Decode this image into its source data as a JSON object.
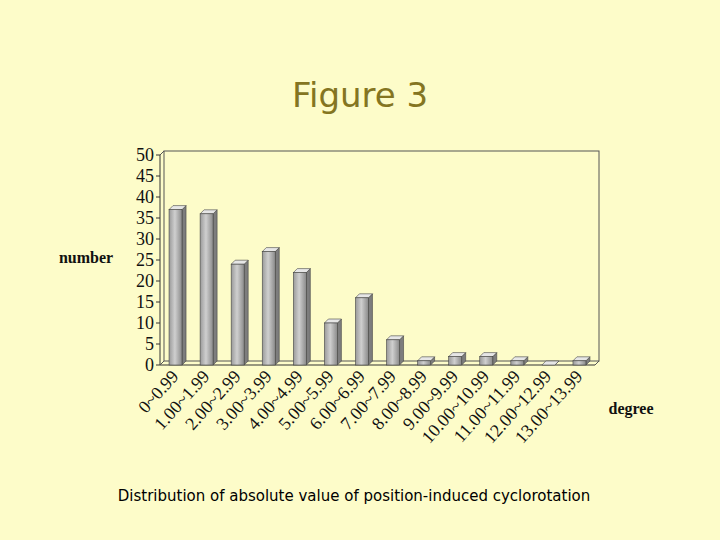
{
  "chart_data": {
    "type": "bar",
    "title": "Figure 3",
    "caption": "Distribution of absolute value of position-induced cyclorotation",
    "x_label": "degree",
    "y_label": "number",
    "categories": [
      "0~0.99",
      "1.00~1.99",
      "2.00~2.99",
      "3.00~3.99",
      "4.00~4.99",
      "5.00~5.99",
      "6.00~6.99",
      "7.00~7.99",
      "8.00~8.99",
      "9.00~9.99",
      "10.00~10.99",
      "11.00~11.99",
      "12.00~12.99",
      "13.00~13.99"
    ],
    "values": [
      37,
      36,
      24,
      27,
      22,
      10,
      16,
      6,
      1,
      2,
      2,
      1,
      0,
      1
    ],
    "color": "#cfcfcf",
    "ylim": [
      0,
      50
    ],
    "yticks": [
      0,
      5,
      10,
      15,
      20,
      25,
      30,
      35,
      40,
      45,
      50
    ],
    "grid": false
  }
}
